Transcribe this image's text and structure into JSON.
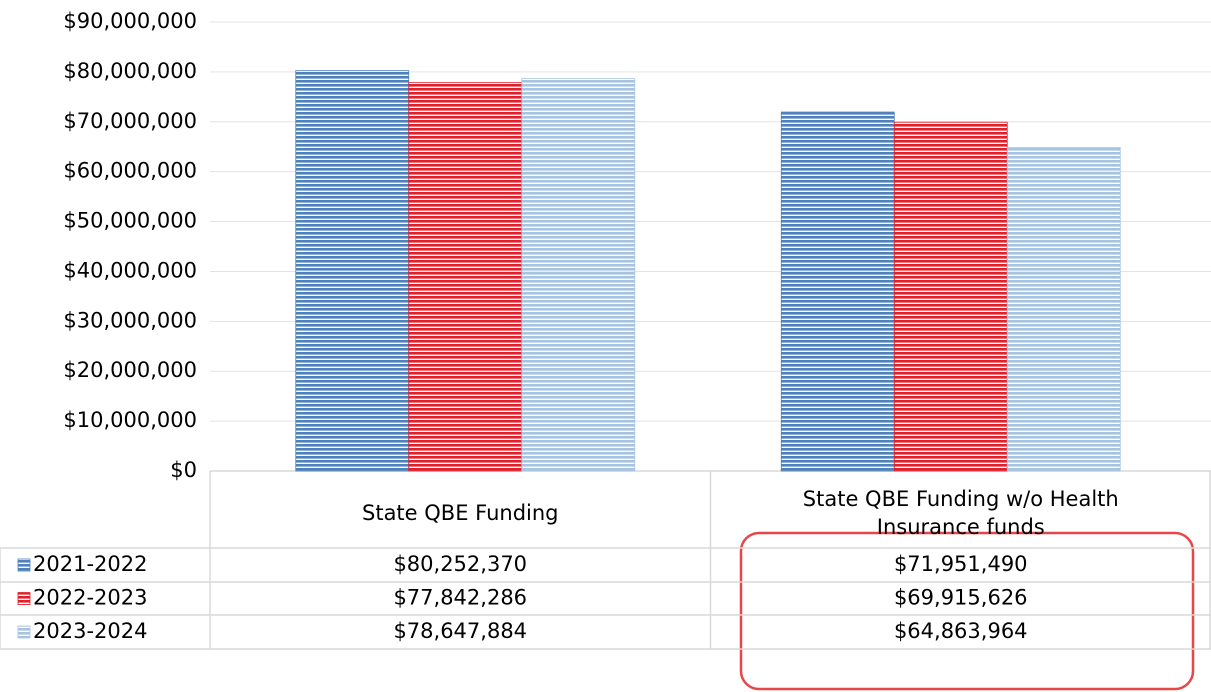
{
  "chart_data": {
    "type": "bar",
    "categories": [
      "State QBE Funding",
      "State QBE Funding w/o Health Insurance funds"
    ],
    "series": [
      {
        "name": "2021-2022",
        "color": "#4f81bd",
        "values": [
          80252370,
          71951490
        ],
        "value_labels": [
          "$80,252,370",
          "$71,951,490"
        ]
      },
      {
        "name": "2022-2023",
        "color": "#e0202a",
        "values": [
          77842286,
          69915626
        ],
        "value_labels": [
          "$77,842,286",
          "$69,915,626"
        ]
      },
      {
        "name": "2023-2024",
        "color": "#a6c3e2",
        "values": [
          78647884,
          64863964
        ],
        "value_labels": [
          "$78,647,884",
          "$64,863,964"
        ]
      }
    ],
    "ylim": [
      0,
      90000000
    ],
    "yticks": [
      {
        "value": 0,
        "label": "$0"
      },
      {
        "value": 10000000,
        "label": "$10,000,000"
      },
      {
        "value": 20000000,
        "label": "$20,000,000"
      },
      {
        "value": 30000000,
        "label": "$30,000,000"
      },
      {
        "value": 40000000,
        "label": "$40,000,000"
      },
      {
        "value": 50000000,
        "label": "$50,000,000"
      },
      {
        "value": 60000000,
        "label": "$60,000,000"
      },
      {
        "value": 70000000,
        "label": "$70,000,000"
      },
      {
        "value": 80000000,
        "label": "$80,000,000"
      },
      {
        "value": 90000000,
        "label": "$90,000,000"
      }
    ],
    "grid": true
  }
}
